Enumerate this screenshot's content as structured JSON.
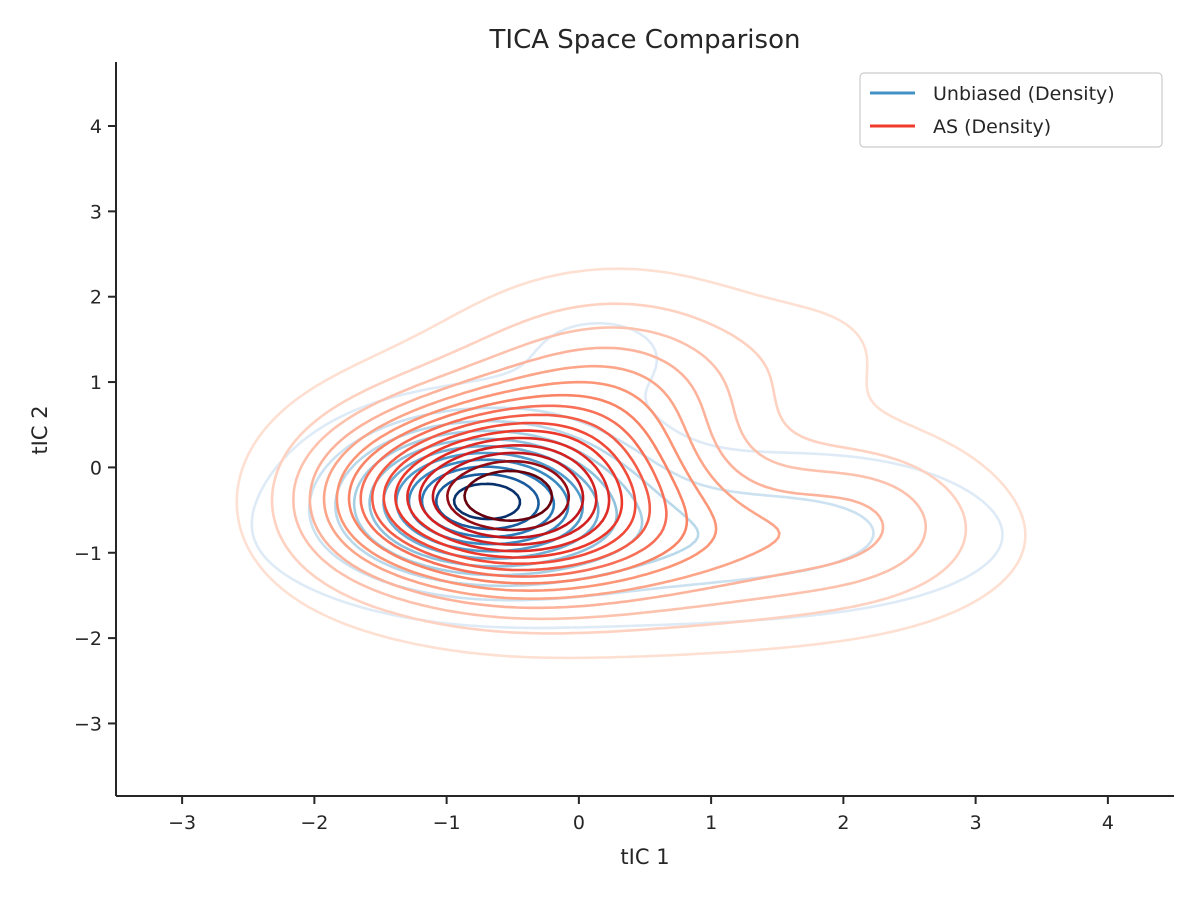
{
  "chart_data": {
    "type": "contour",
    "title": "TICA Space Comparison",
    "xlabel": "tIC 1",
    "ylabel": "tIC 2",
    "xlim": [
      -3.5,
      4.5
    ],
    "ylim": [
      -3.85,
      4.75
    ],
    "xticks": [
      -3,
      -2,
      -1,
      0,
      1,
      2,
      3,
      4
    ],
    "yticks": [
      -3,
      -2,
      -1,
      0,
      1,
      2,
      3,
      4
    ],
    "xtick_labels": [
      "−3",
      "−2",
      "−1",
      "0",
      "1",
      "2",
      "3",
      "4"
    ],
    "ytick_labels": [
      "−3",
      "−2",
      "−1",
      "0",
      "1",
      "2",
      "3",
      "4"
    ],
    "grid": false,
    "legend": {
      "placement": "top-right",
      "entries": [
        {
          "label": "Unbiased (Density)",
          "color": "#4292c6"
        },
        {
          "label": "AS (Density)",
          "color": "#ef3b2c"
        }
      ]
    },
    "series": [
      {
        "name": "Unbiased (Density)",
        "colormap": "Blues",
        "levels": 11,
        "components": [
          {
            "cx": -0.72,
            "cy": -0.35,
            "sx": 0.62,
            "sy": 0.52,
            "weight": 1.0
          },
          {
            "cx": 0.4,
            "cy": -0.85,
            "sx": 1.45,
            "sy": 0.55,
            "weight": 0.22
          },
          {
            "cx": 0.15,
            "cy": 1.3,
            "sx": 0.55,
            "sy": 0.5,
            "weight": 0.06
          },
          {
            "cx": 2.0,
            "cy": -0.6,
            "sx": 0.7,
            "sy": 0.55,
            "weight": 0.05
          }
        ]
      },
      {
        "name": "AS (Density)",
        "colormap": "Reds",
        "levels": 16,
        "components": [
          {
            "cx": -0.6,
            "cy": -0.3,
            "sx": 0.75,
            "sy": 0.7,
            "weight": 1.0
          },
          {
            "cx": 0.3,
            "cy": 0.9,
            "sx": 0.75,
            "sy": 0.75,
            "weight": 0.28
          },
          {
            "cx": 0.8,
            "cy": -0.9,
            "sx": 1.25,
            "sy": 0.65,
            "weight": 0.3
          },
          {
            "cx": 2.2,
            "cy": -0.5,
            "sx": 0.55,
            "sy": 0.6,
            "weight": 0.12
          },
          {
            "cx": 1.9,
            "cy": 1.4,
            "sx": 0.5,
            "sy": 0.55,
            "weight": 0.04
          },
          {
            "cx": -1.6,
            "cy": -0.4,
            "sx": 0.45,
            "sy": 0.6,
            "weight": 0.12
          }
        ]
      }
    ]
  }
}
